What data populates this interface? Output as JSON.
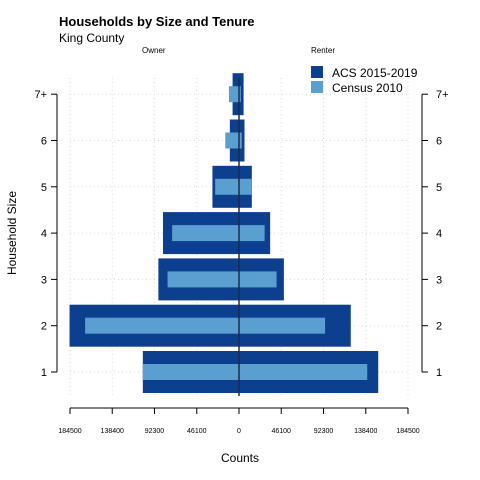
{
  "colors": {
    "acs": "#0d3f8f",
    "census": "#5a9fd0",
    "center_line": "#1a2b4a",
    "grid": "#d9d9d9",
    "axis": "#000000"
  },
  "chart_data": {
    "type": "bar",
    "title": "Households by Size and Tenure",
    "subtitle": "King County",
    "panel_labels": [
      "Owner",
      "Renter"
    ],
    "xlabel": "Counts",
    "ylabel": "Household Size",
    "categories": [
      "1",
      "2",
      "3",
      "4",
      "5",
      "6",
      "7+"
    ],
    "x_ticks": [
      -184500,
      -138400,
      -92300,
      -46100,
      0,
      46100,
      92300,
      138400,
      184500
    ],
    "x_tick_labels": [
      "184500",
      "138400",
      "92300",
      "46100",
      "0",
      "46100",
      "92300",
      "138400",
      "184500"
    ],
    "xlim": [
      -184500,
      184500
    ],
    "legend_position": "top-right",
    "grid": true,
    "series": [
      {
        "name": "ACS 2015-2019",
        "owner": [
          105000,
          185000,
          88000,
          83000,
          29000,
          10000,
          7000
        ],
        "renter": [
          152000,
          122000,
          49000,
          34000,
          14000,
          6000,
          5000
        ]
      },
      {
        "name": "Census 2010",
        "owner": [
          105000,
          168000,
          78000,
          73000,
          26000,
          15000,
          11000
        ],
        "renter": [
          140000,
          94000,
          41000,
          28000,
          14000,
          3000,
          2000
        ]
      }
    ]
  }
}
